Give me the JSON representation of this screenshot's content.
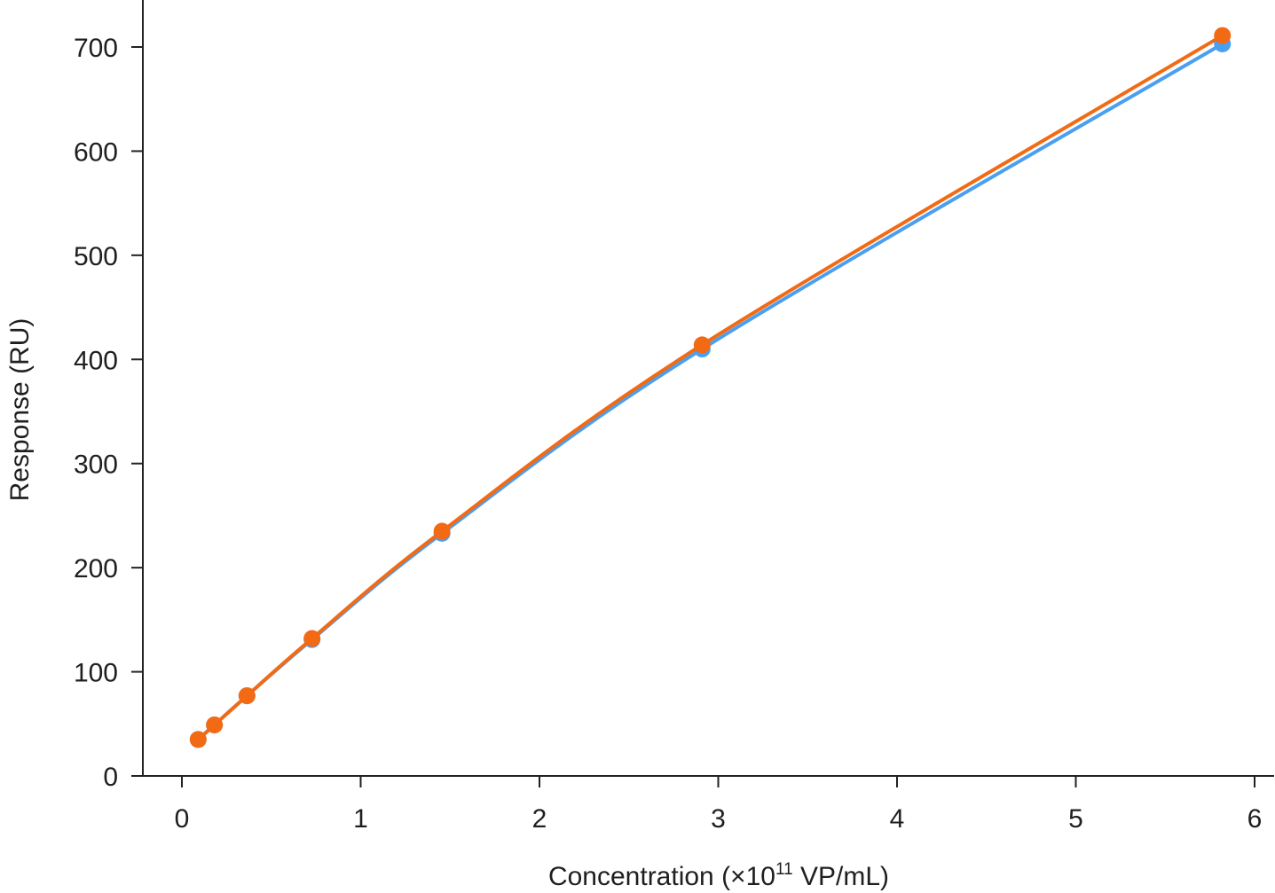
{
  "chart_data": {
    "type": "line",
    "xlabel": {
      "prefix": "Concentration (×10",
      "superscript": "11",
      "suffix": " VP/mL)"
    },
    "ylabel": "Response (RU)",
    "xlim": [
      -0.28,
      6.1
    ],
    "ylim": [
      0,
      745
    ],
    "x_ticks": [
      0,
      1,
      2,
      3,
      4,
      5,
      6
    ],
    "x_tick_labels": [
      "0",
      "1",
      "2",
      "3",
      "4",
      "5",
      "6"
    ],
    "y_ticks": [
      0,
      100,
      200,
      300,
      400,
      500,
      600,
      700
    ],
    "y_tick_labels": [
      "0",
      "100",
      "200",
      "300",
      "400",
      "500",
      "600",
      "700"
    ],
    "grid": false,
    "x": [
      0.091,
      0.182,
      0.364,
      0.728,
      1.455,
      2.91,
      5.82
    ],
    "series": [
      {
        "color": "#4a9ff0",
        "values": [
          35,
          49,
          77,
          131,
          233,
          410,
          703
        ]
      },
      {
        "color": "#f26a14",
        "values": [
          35,
          49,
          77,
          132,
          235,
          414,
          711
        ]
      }
    ]
  }
}
